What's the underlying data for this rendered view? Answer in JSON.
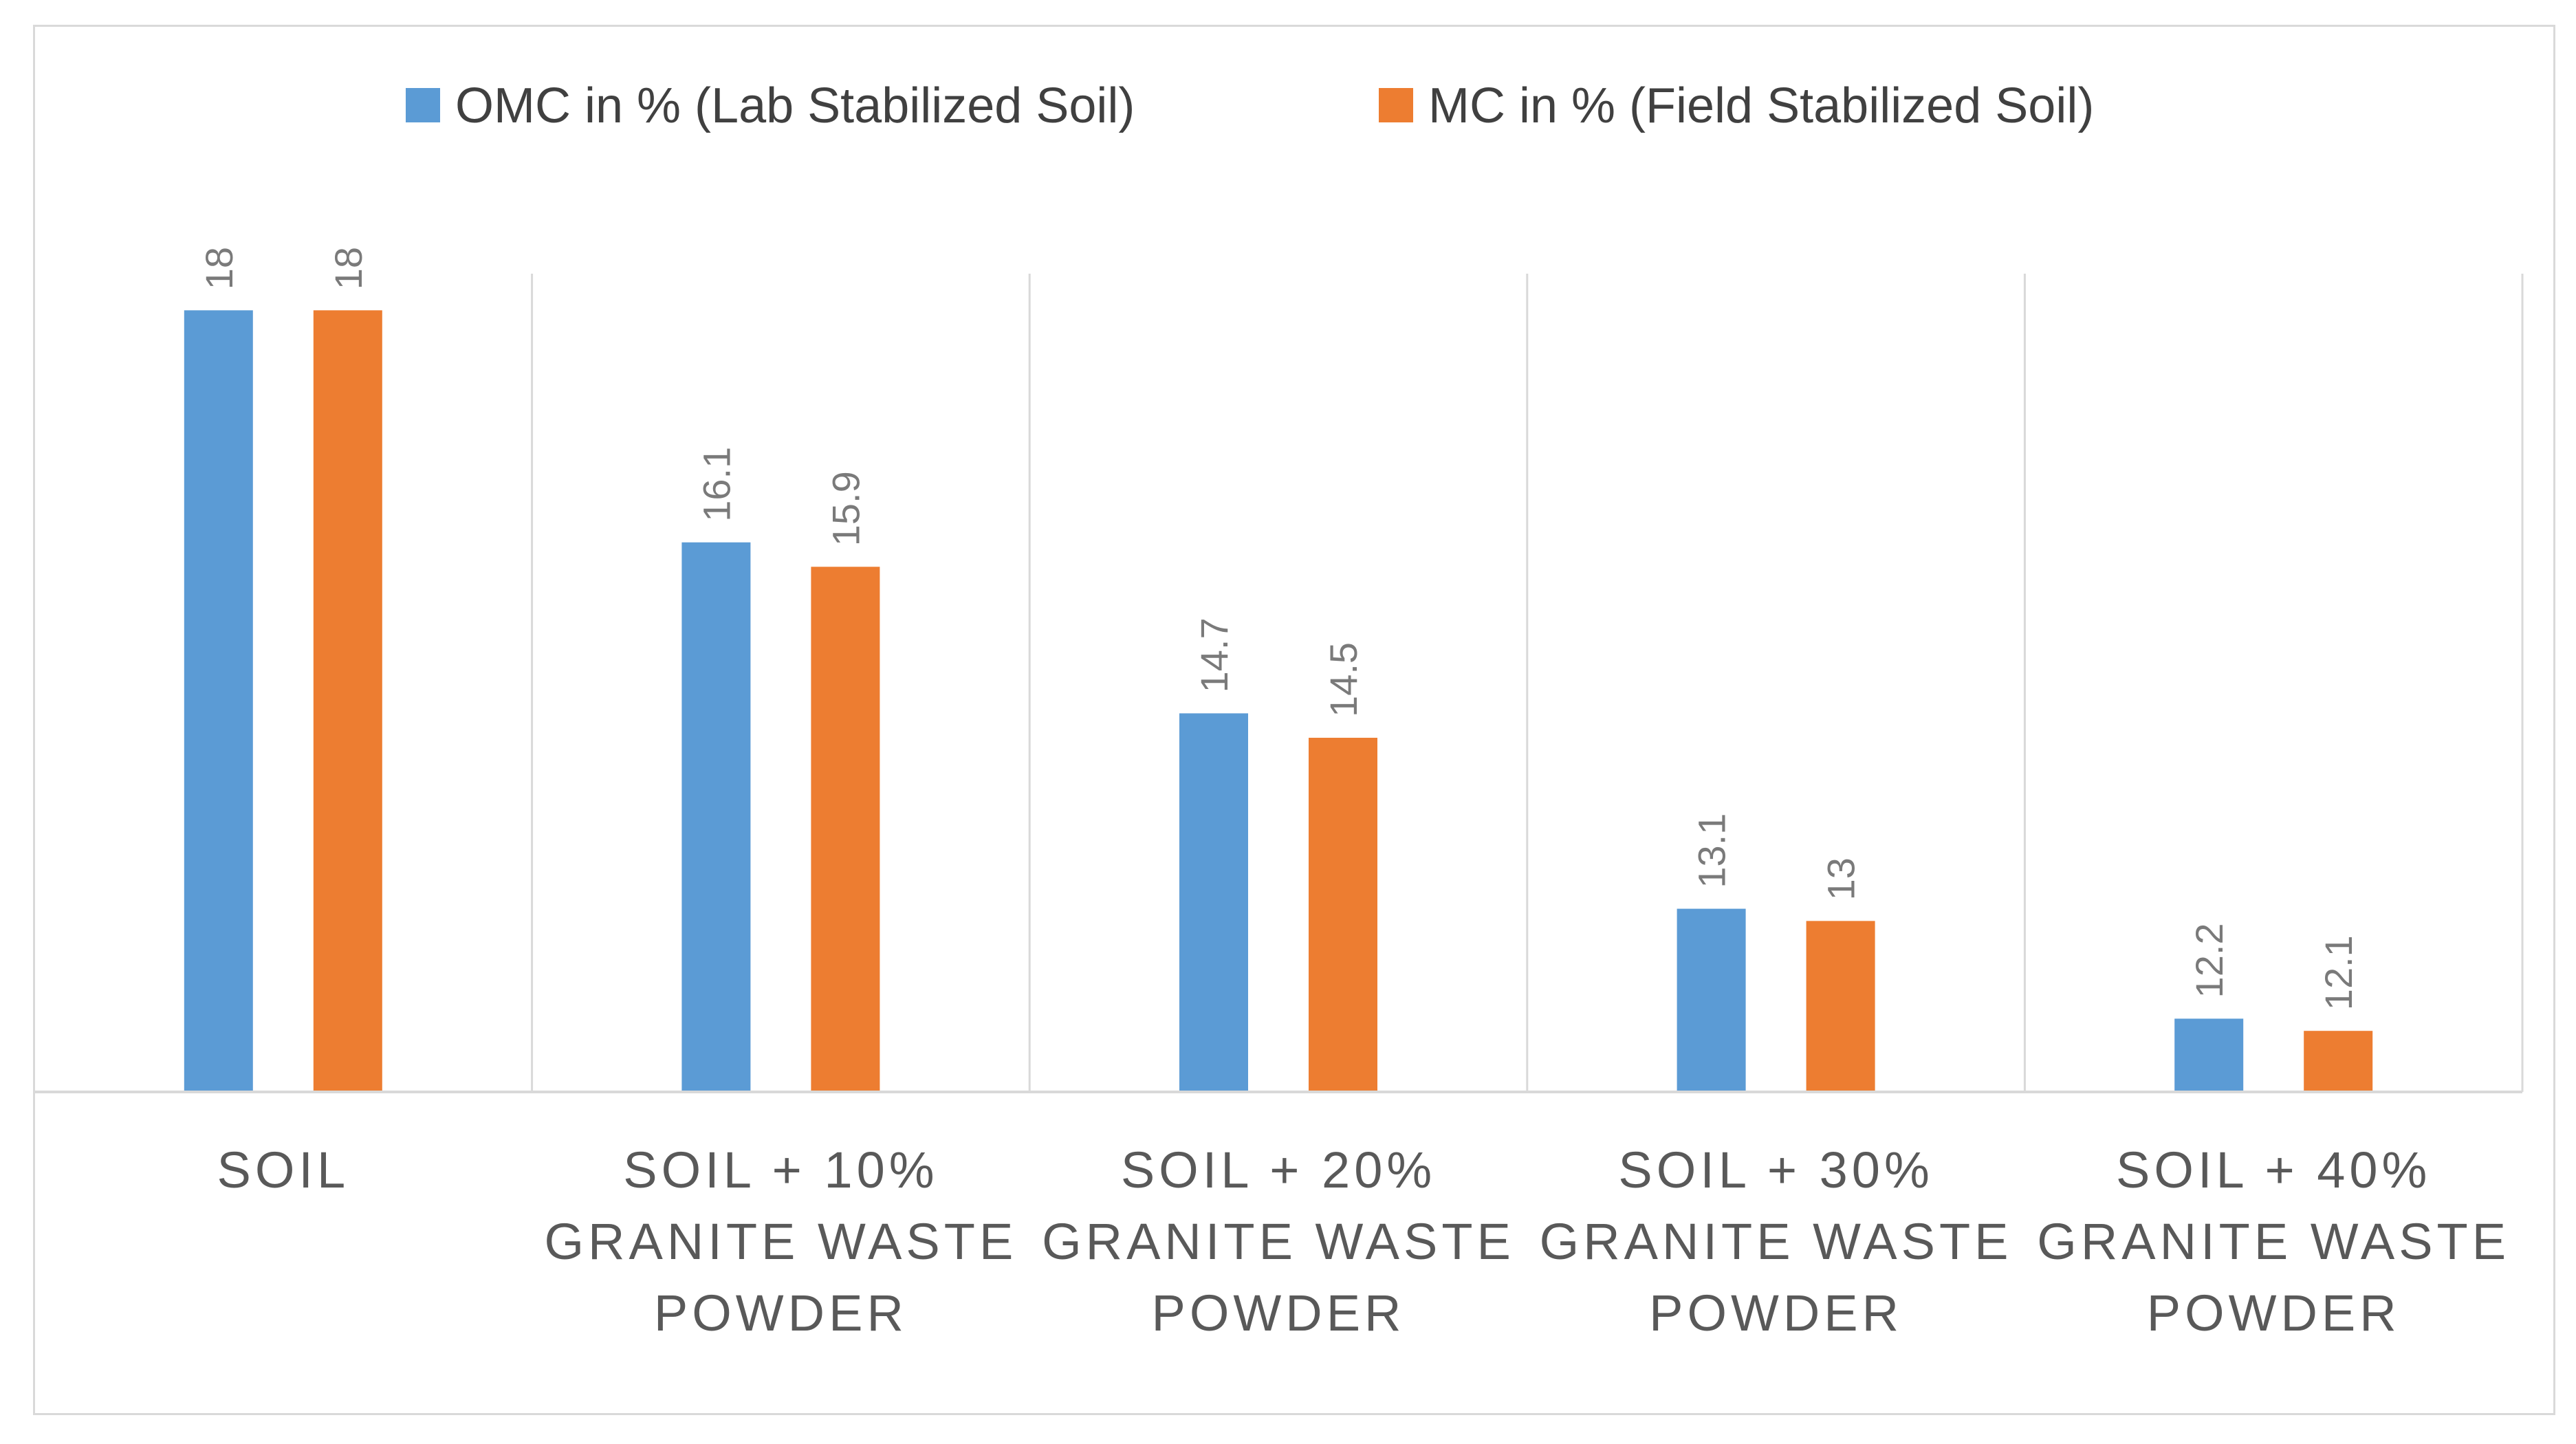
{
  "chart_data": {
    "type": "bar",
    "title": "",
    "xlabel": "",
    "ylabel": "",
    "ylim": [
      11.6,
      18.3
    ],
    "grid": false,
    "legend_position": "top",
    "categories": [
      [
        "SOIL"
      ],
      [
        "SOIL + 10%",
        "GRANITE WASTE",
        "POWDER"
      ],
      [
        "SOIL + 20%",
        "GRANITE WASTE",
        "POWDER"
      ],
      [
        "SOIL + 30%",
        "GRANITE WASTE",
        "POWDER"
      ],
      [
        "SOIL + 40%",
        "GRANITE WASTE",
        "POWDER"
      ]
    ],
    "series": [
      {
        "name": "OMC  in % (Lab Stabilized Soil)",
        "color": "#5b9bd5",
        "values": [
          18,
          16.1,
          14.7,
          13.1,
          12.2
        ]
      },
      {
        "name": "MC in % (Field Stabilized Soil)",
        "color": "#ed7d31",
        "values": [
          18,
          15.9,
          14.5,
          13,
          12.1
        ]
      }
    ]
  }
}
